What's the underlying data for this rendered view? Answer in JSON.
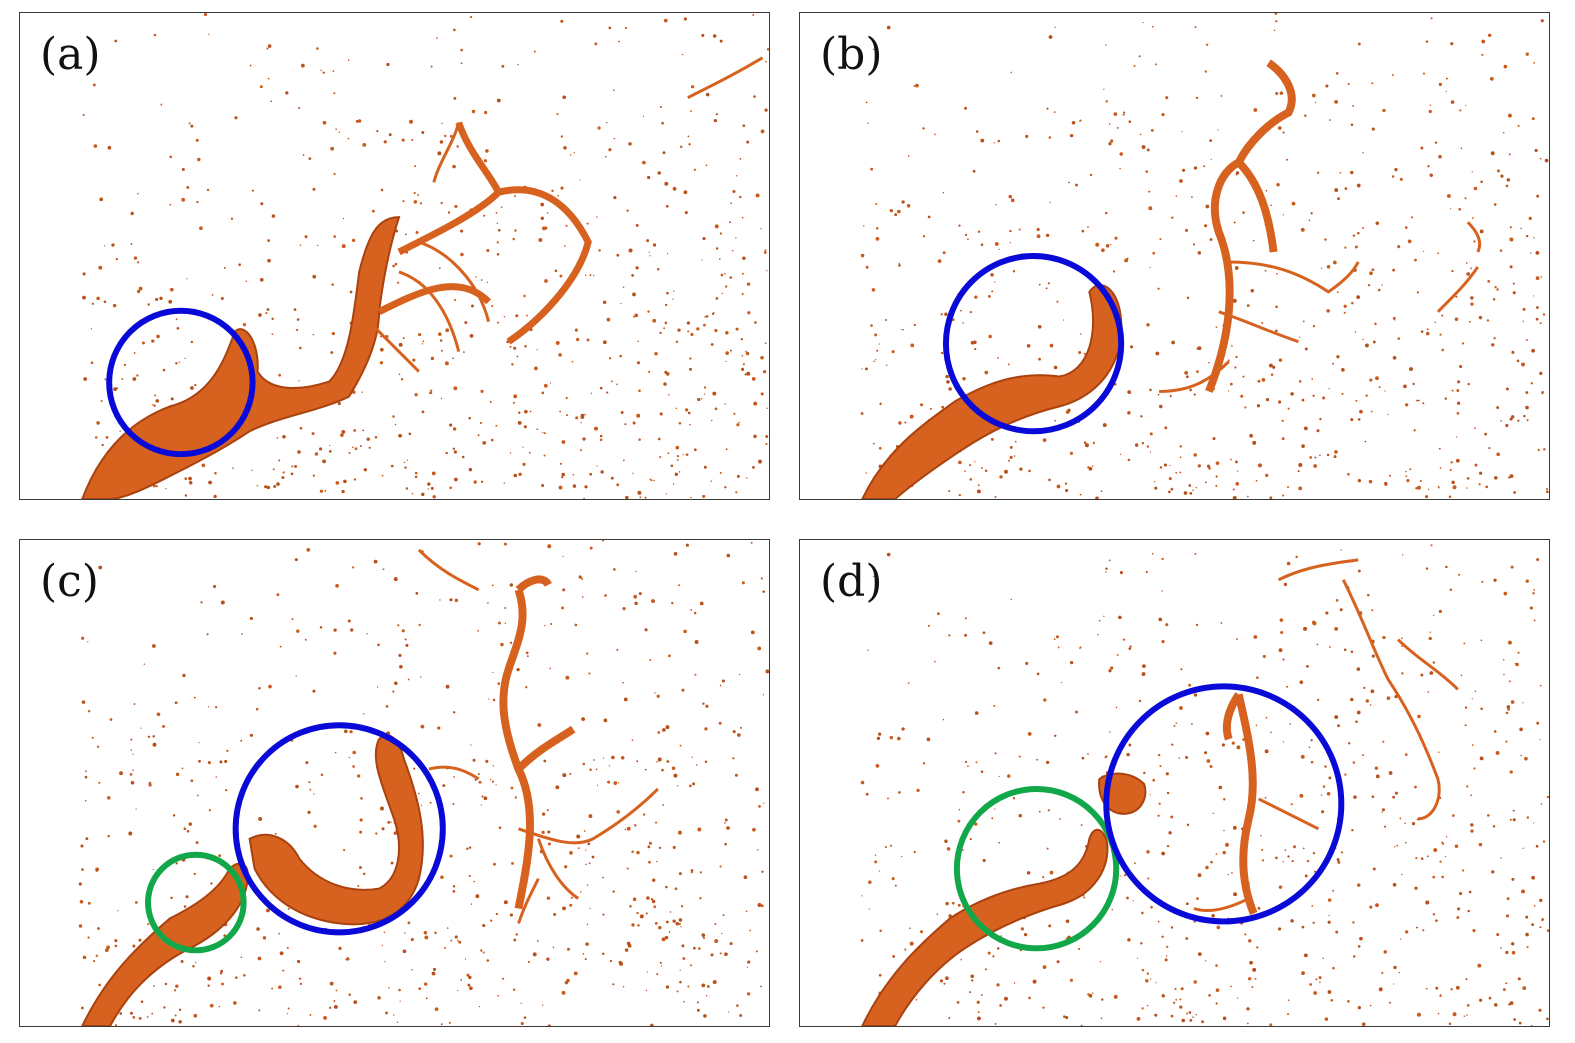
{
  "panels": [
    {
      "id": "a",
      "label": "(a)"
    },
    {
      "id": "b",
      "label": "(b)"
    },
    {
      "id": "c",
      "label": "(c)"
    },
    {
      "id": "d",
      "label": "(d)"
    }
  ],
  "colors": {
    "fluid": "#d7621f",
    "fluid_dark": "#a9420f",
    "blue_circle": "#0a0ad8",
    "green_circle": "#12a84a",
    "frame": "#3a3a3a"
  }
}
